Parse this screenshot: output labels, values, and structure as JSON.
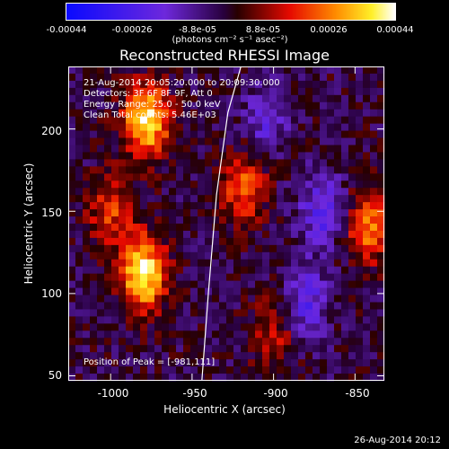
{
  "colorbar": {
    "tick_labels": [
      "-0.00044",
      "-0.00026",
      "-8.8e-05",
      "8.8e-05",
      "0.00026",
      "0.00044"
    ],
    "unit_label": "(photons cm⁻² s⁻¹ asec⁻²)",
    "range": [
      -0.00044,
      0.00044
    ]
  },
  "annotations": {
    "time_range": "21-Aug-2014 20:05:20.000 to 20:09:30.000",
    "detectors": "Detectors: 3F 6F 8F 9F, Att 0",
    "energy": "Energy Range: 25.0 - 50.0 keV",
    "clean": "Clean      Total counts: 5.46E+03",
    "peak": "Position of Peak = [-981,111]"
  },
  "footer": "26-Aug-2014 20:12",
  "chart_data": {
    "type": "heatmap",
    "title": "Reconstructed RHESSI Image",
    "xlabel": "Heliocentric X (arcsec)",
    "ylabel": "Heliocentric Y (arcsec)",
    "xlim": [
      -1026,
      -832
    ],
    "ylim": [
      47,
      238
    ],
    "x_ticks": [
      -1000,
      -950,
      -900,
      -850
    ],
    "y_ticks": [
      50,
      100,
      150,
      200
    ],
    "x_tick_labels": [
      "-1000",
      "-950",
      "-900",
      "-850"
    ],
    "y_tick_labels": [
      "50",
      "100",
      "150",
      "200"
    ],
    "peak_position": [
      -981,
      111
    ],
    "sources": [
      {
        "x": -980,
        "y": 112,
        "intensity": 1.0
      },
      {
        "x": -978,
        "y": 205,
        "intensity": 0.95
      },
      {
        "x": -1000,
        "y": 150,
        "intensity": 0.45
      },
      {
        "x": -918,
        "y": 165,
        "intensity": 0.55
      },
      {
        "x": -842,
        "y": 140,
        "intensity": 0.6
      },
      {
        "x": -900,
        "y": 75,
        "intensity": 0.35
      },
      {
        "x": -870,
        "y": 150,
        "intensity": -0.5
      },
      {
        "x": -880,
        "y": 95,
        "intensity": -0.45
      },
      {
        "x": -905,
        "y": 205,
        "intensity": -0.35
      }
    ],
    "limb_x": [
      -944,
      -940,
      -935,
      -928,
      -920
    ],
    "limb_y": [
      47,
      100,
      160,
      210,
      238
    ]
  }
}
